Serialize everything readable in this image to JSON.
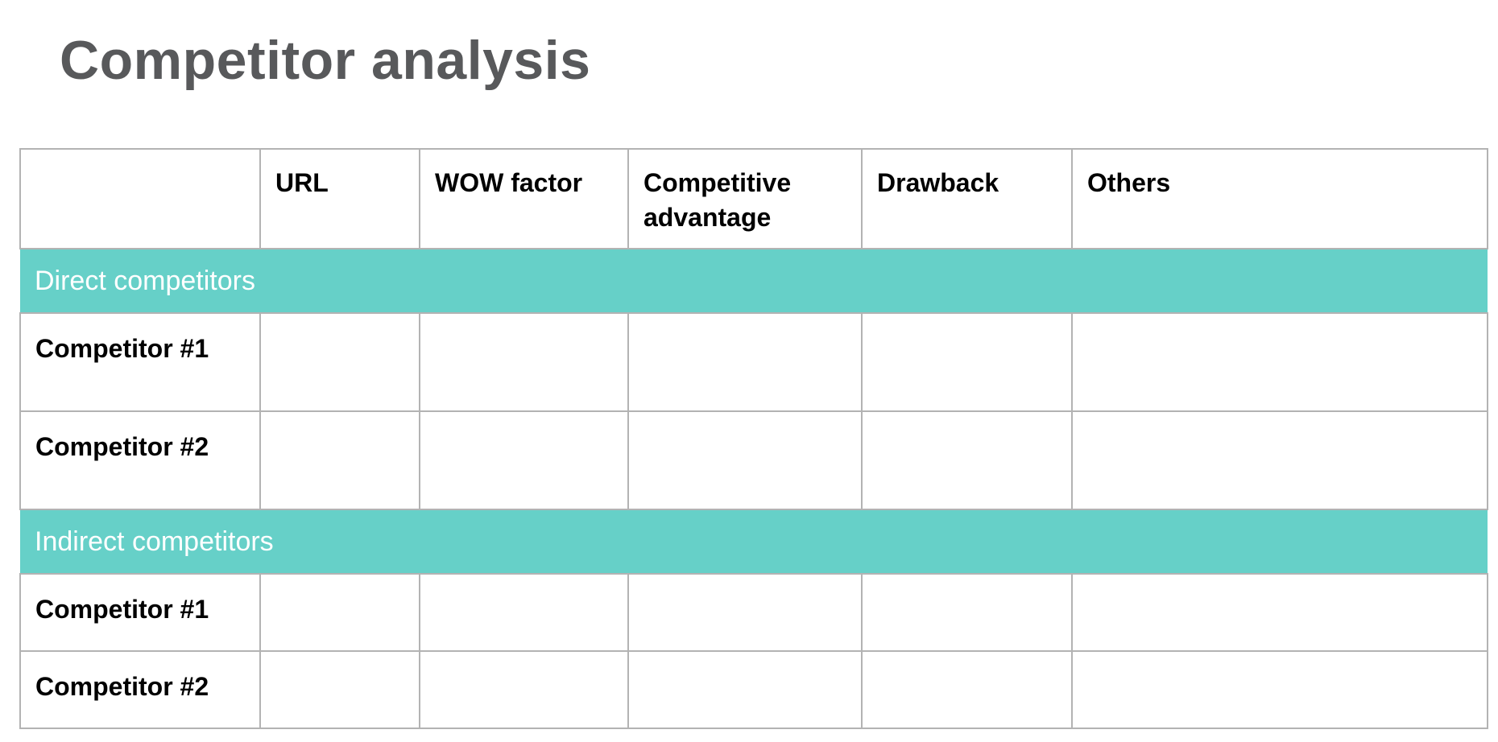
{
  "page": {
    "title": "Competitor analysis"
  },
  "table": {
    "headers": [
      "",
      "URL",
      "WOW factor",
      "Competitive advantage",
      "Drawback",
      "Others"
    ],
    "sections": [
      {
        "label": "Direct competitors",
        "rows": [
          {
            "label": "Competitor  #1",
            "cells": [
              "",
              "",
              "",
              "",
              ""
            ]
          },
          {
            "label": "Competitor #2",
            "cells": [
              "",
              "",
              "",
              "",
              ""
            ]
          }
        ]
      },
      {
        "label": "Indirect competitors",
        "rows": [
          {
            "label": "Competitor #1",
            "cells": [
              "",
              "",
              "",
              "",
              ""
            ]
          },
          {
            "label": "Competitor #2",
            "cells": [
              "",
              "",
              "",
              "",
              ""
            ]
          }
        ]
      }
    ]
  },
  "colors": {
    "section_band": "#66d0c8",
    "title_text": "#58595b",
    "grid_lines": "#b3b3b3"
  }
}
